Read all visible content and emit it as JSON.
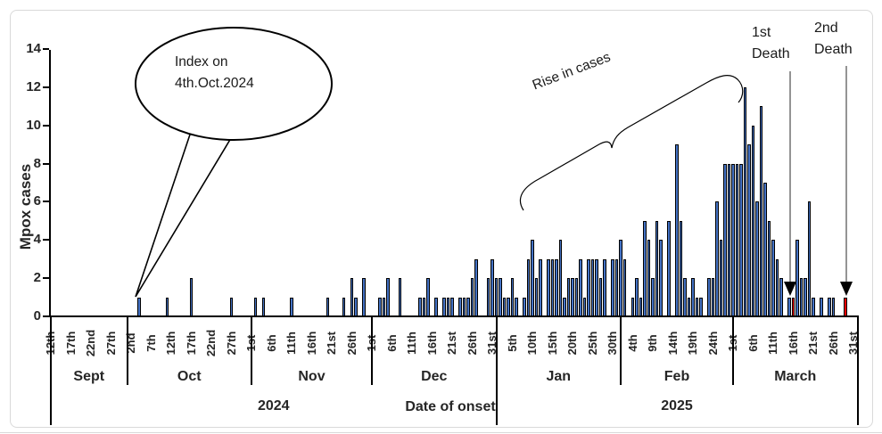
{
  "figure": {
    "background": "#ffffff",
    "border_color": "#d9d9d9",
    "bar_color": "#4472c4",
    "bar_outline": "#000000",
    "death_bar_color": "#ff0000"
  },
  "annotations": {
    "callout": {
      "line1": "Index on",
      "line2": "4th.Oct.2024"
    },
    "rise_label": "Rise in cases",
    "first_death": {
      "line1": "1st",
      "line2": "Death"
    },
    "second_death": {
      "line1": "2nd",
      "line2": "Death"
    }
  },
  "chart_data": {
    "type": "bar",
    "title": "",
    "ylabel": "Mpox cases",
    "xlabel": "Date of onset",
    "ylim": [
      0,
      14
    ],
    "yticks": [
      0,
      2,
      4,
      6,
      8,
      10,
      12,
      14
    ],
    "grid": false,
    "x_axis": {
      "start_date": "2024-09-12",
      "end_date": "2025-03-31",
      "tick_step_days": 5,
      "day_tick_labels": [
        "12th",
        "17th",
        "22nd",
        "27th",
        "2nd",
        "7th",
        "12th",
        "17th",
        "22nd",
        "27th",
        "1st",
        "6th",
        "11th",
        "16th",
        "21st",
        "26th",
        "1st",
        "6th",
        "11th",
        "16th",
        "21st",
        "26th",
        "31st",
        "5th",
        "10th",
        "15th",
        "20th",
        "25th",
        "30th",
        "4th",
        "9th",
        "14th",
        "19th",
        "24th",
        "1st",
        "6th",
        "11th",
        "16th",
        "21st",
        "26th",
        "31st"
      ],
      "months": [
        {
          "label": "Sept",
          "start": 0,
          "end": 19
        },
        {
          "label": "Oct",
          "start": 19,
          "end": 50
        },
        {
          "label": "Nov",
          "start": 50,
          "end": 80
        },
        {
          "label": "Dec",
          "start": 80,
          "end": 111
        },
        {
          "label": "Jan",
          "start": 111,
          "end": 142
        },
        {
          "label": "Feb",
          "start": 142,
          "end": 170
        },
        {
          "label": "March",
          "start": 170,
          "end": 201
        }
      ],
      "years": [
        {
          "label": "2024",
          "start": 0,
          "end": 111
        },
        {
          "label": "2025",
          "start": 111,
          "end": 201
        }
      ]
    },
    "bars": [
      {
        "d": "Oct 4",
        "i": 22,
        "v": 1
      },
      {
        "d": "Oct 11",
        "i": 29,
        "v": 1
      },
      {
        "d": "Oct 17",
        "i": 35,
        "v": 2
      },
      {
        "d": "Oct 27",
        "i": 45,
        "v": 1
      },
      {
        "d": "Nov 2",
        "i": 51,
        "v": 1
      },
      {
        "d": "Nov 4",
        "i": 53,
        "v": 1
      },
      {
        "d": "Nov 11",
        "i": 60,
        "v": 1
      },
      {
        "d": "Nov 20",
        "i": 69,
        "v": 1
      },
      {
        "d": "Nov 24",
        "i": 73,
        "v": 1
      },
      {
        "d": "Nov 26",
        "i": 75,
        "v": 2
      },
      {
        "d": "Nov 27",
        "i": 76,
        "v": 1
      },
      {
        "d": "Nov 29",
        "i": 78,
        "v": 2
      },
      {
        "d": "Dec 3",
        "i": 82,
        "v": 1
      },
      {
        "d": "Dec 4",
        "i": 83,
        "v": 1
      },
      {
        "d": "Dec 5",
        "i": 84,
        "v": 2
      },
      {
        "d": "Dec 8",
        "i": 87,
        "v": 2
      },
      {
        "d": "Dec 13",
        "i": 92,
        "v": 1
      },
      {
        "d": "Dec 14",
        "i": 93,
        "v": 1
      },
      {
        "d": "Dec 15",
        "i": 94,
        "v": 2
      },
      {
        "d": "Dec 17",
        "i": 96,
        "v": 1
      },
      {
        "d": "Dec 19",
        "i": 98,
        "v": 1
      },
      {
        "d": "Dec 20",
        "i": 99,
        "v": 1
      },
      {
        "d": "Dec 21",
        "i": 100,
        "v": 1
      },
      {
        "d": "Dec 23",
        "i": 102,
        "v": 1
      },
      {
        "d": "Dec 24",
        "i": 103,
        "v": 1
      },
      {
        "d": "Dec 25",
        "i": 104,
        "v": 1
      },
      {
        "d": "Dec 26",
        "i": 105,
        "v": 2
      },
      {
        "d": "Dec 27",
        "i": 106,
        "v": 3
      },
      {
        "d": "Dec 30",
        "i": 109,
        "v": 2
      },
      {
        "d": "Dec 31",
        "i": 110,
        "v": 3
      },
      {
        "d": "Jan 1",
        "i": 111,
        "v": 2
      },
      {
        "d": "Jan 2",
        "i": 112,
        "v": 2
      },
      {
        "d": "Jan 3",
        "i": 113,
        "v": 1
      },
      {
        "d": "Jan 4",
        "i": 114,
        "v": 1
      },
      {
        "d": "Jan 5",
        "i": 115,
        "v": 2
      },
      {
        "d": "Jan 6",
        "i": 116,
        "v": 1
      },
      {
        "d": "Jan 8",
        "i": 118,
        "v": 1
      },
      {
        "d": "Jan 9",
        "i": 119,
        "v": 3
      },
      {
        "d": "Jan 10",
        "i": 120,
        "v": 4
      },
      {
        "d": "Jan 11",
        "i": 121,
        "v": 2
      },
      {
        "d": "Jan 12",
        "i": 122,
        "v": 3
      },
      {
        "d": "Jan 14",
        "i": 124,
        "v": 3
      },
      {
        "d": "Jan 15",
        "i": 125,
        "v": 3
      },
      {
        "d": "Jan 16",
        "i": 126,
        "v": 3
      },
      {
        "d": "Jan 17",
        "i": 127,
        "v": 4
      },
      {
        "d": "Jan 18",
        "i": 128,
        "v": 1
      },
      {
        "d": "Jan 19",
        "i": 129,
        "v": 2
      },
      {
        "d": "Jan 20",
        "i": 130,
        "v": 2
      },
      {
        "d": "Jan 21",
        "i": 131,
        "v": 2
      },
      {
        "d": "Jan 22",
        "i": 132,
        "v": 3
      },
      {
        "d": "Jan 23",
        "i": 133,
        "v": 1
      },
      {
        "d": "Jan 24",
        "i": 134,
        "v": 3
      },
      {
        "d": "Jan 25",
        "i": 135,
        "v": 3
      },
      {
        "d": "Jan 26",
        "i": 136,
        "v": 3
      },
      {
        "d": "Jan 27",
        "i": 137,
        "v": 2
      },
      {
        "d": "Jan 28",
        "i": 138,
        "v": 3
      },
      {
        "d": "Jan 30",
        "i": 140,
        "v": 3
      },
      {
        "d": "Jan 31",
        "i": 141,
        "v": 3
      },
      {
        "d": "Feb 1",
        "i": 142,
        "v": 4
      },
      {
        "d": "Feb 2",
        "i": 143,
        "v": 3
      },
      {
        "d": "Feb 4",
        "i": 145,
        "v": 1
      },
      {
        "d": "Feb 5",
        "i": 146,
        "v": 2
      },
      {
        "d": "Feb 6",
        "i": 147,
        "v": 1
      },
      {
        "d": "Feb 7",
        "i": 148,
        "v": 5
      },
      {
        "d": "Feb 8",
        "i": 149,
        "v": 4
      },
      {
        "d": "Feb 9",
        "i": 150,
        "v": 2
      },
      {
        "d": "Feb 10",
        "i": 151,
        "v": 5
      },
      {
        "d": "Feb 11",
        "i": 152,
        "v": 4
      },
      {
        "d": "Feb 13",
        "i": 154,
        "v": 5
      },
      {
        "d": "Feb 15",
        "i": 156,
        "v": 9
      },
      {
        "d": "Feb 16",
        "i": 157,
        "v": 5
      },
      {
        "d": "Feb 17",
        "i": 158,
        "v": 2
      },
      {
        "d": "Feb 18",
        "i": 159,
        "v": 1
      },
      {
        "d": "Feb 19",
        "i": 160,
        "v": 2
      },
      {
        "d": "Feb 20",
        "i": 161,
        "v": 1
      },
      {
        "d": "Feb 21",
        "i": 162,
        "v": 1
      },
      {
        "d": "Feb 23",
        "i": 164,
        "v": 2
      },
      {
        "d": "Feb 24",
        "i": 165,
        "v": 2
      },
      {
        "d": "Feb 25",
        "i": 166,
        "v": 6
      },
      {
        "d": "Feb 26",
        "i": 167,
        "v": 4
      },
      {
        "d": "Feb 27",
        "i": 168,
        "v": 8
      },
      {
        "d": "Feb 28",
        "i": 169,
        "v": 8
      },
      {
        "d": "Mar 1",
        "i": 170,
        "v": 8
      },
      {
        "d": "Mar 2",
        "i": 171,
        "v": 8
      },
      {
        "d": "Mar 3",
        "i": 172,
        "v": 8
      },
      {
        "d": "Mar 4",
        "i": 173,
        "v": 12
      },
      {
        "d": "Mar 5",
        "i": 174,
        "v": 9
      },
      {
        "d": "Mar 6",
        "i": 175,
        "v": 10
      },
      {
        "d": "Mar 7",
        "i": 176,
        "v": 6
      },
      {
        "d": "Mar 8",
        "i": 177,
        "v": 11
      },
      {
        "d": "Mar 9",
        "i": 178,
        "v": 7
      },
      {
        "d": "Mar 10",
        "i": 179,
        "v": 5
      },
      {
        "d": "Mar 11",
        "i": 180,
        "v": 4
      },
      {
        "d": "Mar 12",
        "i": 181,
        "v": 3
      },
      {
        "d": "Mar 13",
        "i": 182,
        "v": 2
      },
      {
        "d": "Mar 15",
        "i": 184,
        "v": 1
      },
      {
        "d": "Mar 16",
        "i": 185,
        "v": 1,
        "red": true
      },
      {
        "d": "Mar 17",
        "i": 186,
        "v": 4
      },
      {
        "d": "Mar 18",
        "i": 187,
        "v": 2
      },
      {
        "d": "Mar 19",
        "i": 188,
        "v": 2
      },
      {
        "d": "Mar 20",
        "i": 189,
        "v": 6
      },
      {
        "d": "Mar 21",
        "i": 190,
        "v": 1
      },
      {
        "d": "Mar 23",
        "i": 192,
        "v": 1
      },
      {
        "d": "Mar 25",
        "i": 194,
        "v": 1
      },
      {
        "d": "Mar 26",
        "i": 195,
        "v": 1
      },
      {
        "d": "Mar 29",
        "i": 198,
        "v": 1,
        "red": true
      }
    ]
  }
}
